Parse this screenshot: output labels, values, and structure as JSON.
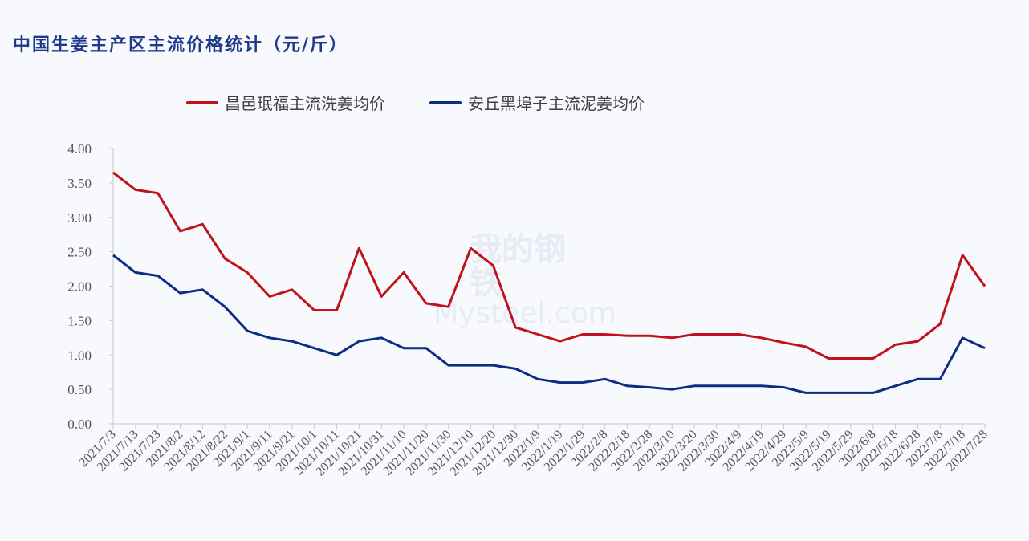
{
  "title": "中国生姜主产区主流价格统计（元/斤）",
  "legend": [
    {
      "label": "昌邑珉福主流洗姜均价",
      "color": "#c0121c"
    },
    {
      "label": "安丘黑埠子主流泥姜均价",
      "color": "#0c2d83"
    }
  ],
  "watermark": {
    "cn": "我的钢铁",
    "en": "Mysteel.com"
  },
  "chart_data": {
    "type": "line",
    "title": "中国生姜主产区主流价格统计（元/斤）",
    "xlabel": "",
    "ylabel": "",
    "ylim": [
      0,
      4
    ],
    "yticks": [
      "0.00",
      "0.50",
      "1.00",
      "1.50",
      "2.00",
      "2.50",
      "3.00",
      "3.50",
      "4.00"
    ],
    "grid": false,
    "legend_position": "top",
    "x": [
      "2021/7/3",
      "2021/7/13",
      "2021/7/23",
      "2021/8/2",
      "2021/8/12",
      "2021/8/22",
      "2021/9/1",
      "2021/9/11",
      "2021/9/21",
      "2021/10/1",
      "2021/10/11",
      "2021/10/21",
      "2021/10/31",
      "2021/11/10",
      "2021/11/20",
      "2021/11/30",
      "2021/12/10",
      "2021/12/20",
      "2021/12/30",
      "2022/1/9",
      "2022/1/19",
      "2022/1/29",
      "2022/2/8",
      "2022/2/18",
      "2022/2/28",
      "2022/3/10",
      "2022/3/20",
      "2022/3/30",
      "2022/4/9",
      "2022/4/19",
      "2022/4/29",
      "2022/5/9",
      "2022/5/19",
      "2022/5/29",
      "2022/6/8",
      "2022/6/18",
      "2022/6/28",
      "2022/7/8",
      "2022/7/18",
      "2022/7/28"
    ],
    "series": [
      {
        "name": "昌邑珉福主流洗姜均价",
        "color": "#c0121c",
        "values": [
          3.65,
          3.4,
          3.35,
          2.8,
          2.9,
          2.4,
          2.2,
          1.85,
          1.95,
          1.65,
          1.65,
          2.55,
          1.85,
          2.2,
          1.75,
          1.7,
          2.55,
          2.3,
          1.4,
          1.3,
          1.2,
          1.3,
          1.3,
          1.28,
          1.28,
          1.25,
          1.3,
          1.3,
          1.3,
          1.25,
          1.18,
          1.12,
          0.95,
          0.95,
          0.95,
          1.15,
          1.2,
          1.45,
          2.45,
          2.0
        ]
      },
      {
        "name": "安丘黑埠子主流泥姜均价",
        "color": "#0c2d83",
        "values": [
          2.45,
          2.2,
          2.15,
          1.9,
          1.95,
          1.7,
          1.35,
          1.25,
          1.2,
          1.1,
          1.0,
          1.2,
          1.25,
          1.1,
          1.1,
          0.85,
          0.85,
          0.85,
          0.8,
          0.65,
          0.6,
          0.6,
          0.65,
          0.55,
          0.53,
          0.5,
          0.55,
          0.55,
          0.55,
          0.55,
          0.53,
          0.45,
          0.45,
          0.45,
          0.45,
          0.55,
          0.65,
          0.65,
          1.25,
          1.1
        ]
      }
    ]
  }
}
